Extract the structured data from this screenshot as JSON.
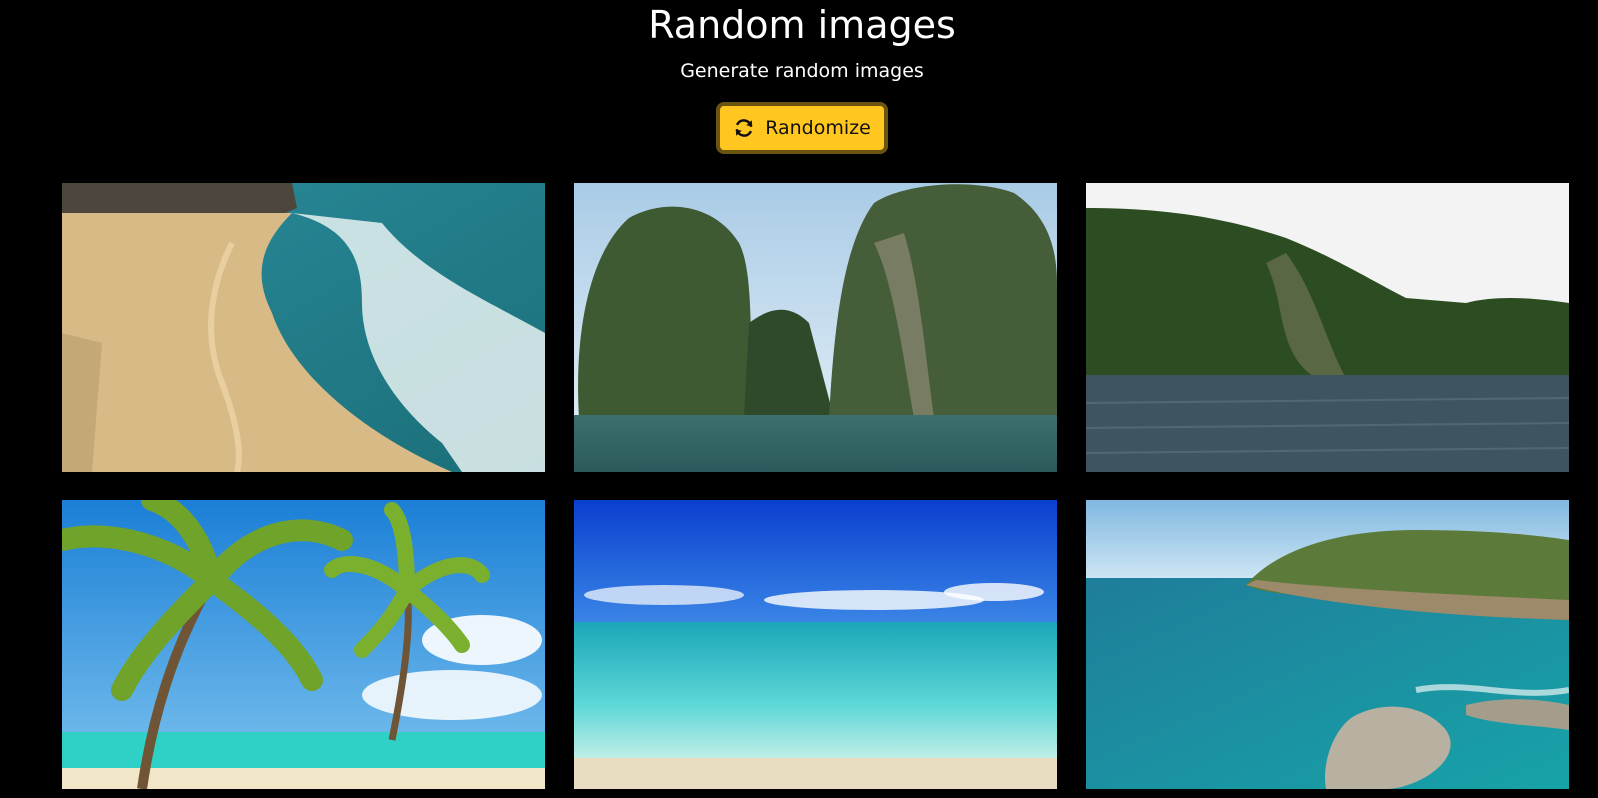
{
  "header": {
    "title": "Random images",
    "subtitle": "Generate random images"
  },
  "actions": {
    "randomize_label": "Randomize",
    "randomize_icon": "refresh-icon"
  },
  "colors": {
    "background": "#000000",
    "button": "#ffc71f",
    "button_border": "#6b5410"
  },
  "images": [
    {
      "subject": "sandy beach with waves"
    },
    {
      "subject": "limestone cliffs over bay"
    },
    {
      "subject": "green hills over lake"
    },
    {
      "subject": "palm trees on tropical beach"
    },
    {
      "subject": "clear turquoise sea"
    },
    {
      "subject": "rocky coastline"
    }
  ]
}
